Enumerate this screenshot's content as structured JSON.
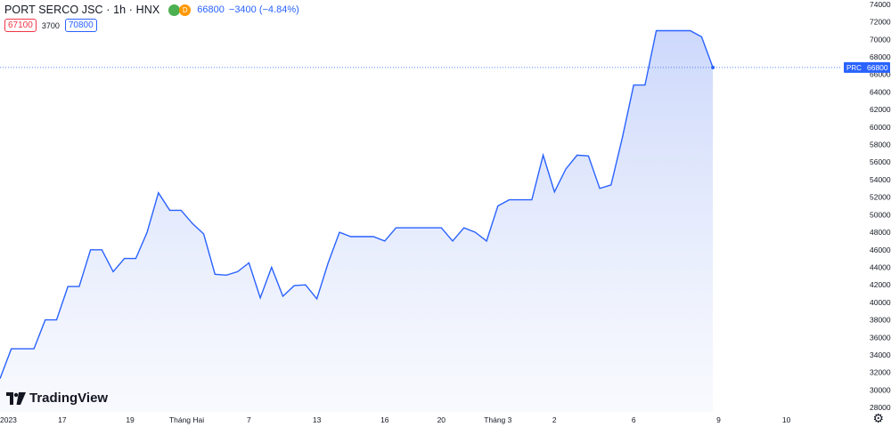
{
  "header": {
    "title": "PORT SERCO JSC · 1h · HNX",
    "status_icons": [
      "green-dot-icon",
      "orange-d-icon"
    ],
    "orange_dot_letter": "D",
    "last_price": "66800",
    "change": "−3400 (−4.84%)"
  },
  "ohlc": {
    "low_box": "67100",
    "spread": "3700",
    "high_box": "70800"
  },
  "branding": {
    "logo_text": "TradingView"
  },
  "price_tag": {
    "label": "PRC",
    "value": "66800"
  },
  "colors": {
    "line": "#2962ff",
    "fill_top": "#c7d4fb",
    "fill_bottom": "#f4f6fd",
    "tag": "#2962ff"
  },
  "chart_data": {
    "type": "area",
    "y_range": [
      27500,
      74500
    ],
    "y_ticks": [
      28000,
      30000,
      32000,
      34000,
      36000,
      38000,
      40000,
      42000,
      44000,
      46000,
      48000,
      50000,
      52000,
      54000,
      56000,
      58000,
      60000,
      62000,
      64000,
      66000,
      68000,
      70000,
      72000,
      74000
    ],
    "x_ticks": [
      {
        "label": "2023",
        "index": 0
      },
      {
        "label": "17",
        "index": 5.5
      },
      {
        "label": "19",
        "index": 11.5
      },
      {
        "label": "Tháng Hai",
        "index": 16.5
      },
      {
        "label": "7",
        "index": 22
      },
      {
        "label": "13",
        "index": 28
      },
      {
        "label": "16",
        "index": 34
      },
      {
        "label": "20",
        "index": 39
      },
      {
        "label": "Tháng 3",
        "index": 44
      },
      {
        "label": "2",
        "index": 49
      },
      {
        "label": "6",
        "index": 56
      },
      {
        "label": "9",
        "index": 63.5
      },
      {
        "label": "10",
        "index": 69.5
      }
    ],
    "values": [
      31300,
      34700,
      34700,
      34700,
      38000,
      38000,
      41800,
      41800,
      46000,
      46000,
      43500,
      45000,
      45000,
      48000,
      52500,
      50500,
      50500,
      49000,
      47800,
      43200,
      43100,
      43500,
      44500,
      40500,
      44000,
      40700,
      41900,
      42000,
      40400,
      44500,
      48000,
      47500,
      47500,
      47500,
      47000,
      48500,
      48500,
      48500,
      48500,
      48500,
      47000,
      48500,
      48000,
      47000,
      51000,
      51700,
      51700,
      51700,
      56800,
      52600,
      55200,
      56800,
      56700,
      53000,
      53400,
      58800,
      64800,
      64800,
      71000,
      71000,
      71000,
      71000,
      70300,
      66800
    ],
    "last_value": 66800
  }
}
